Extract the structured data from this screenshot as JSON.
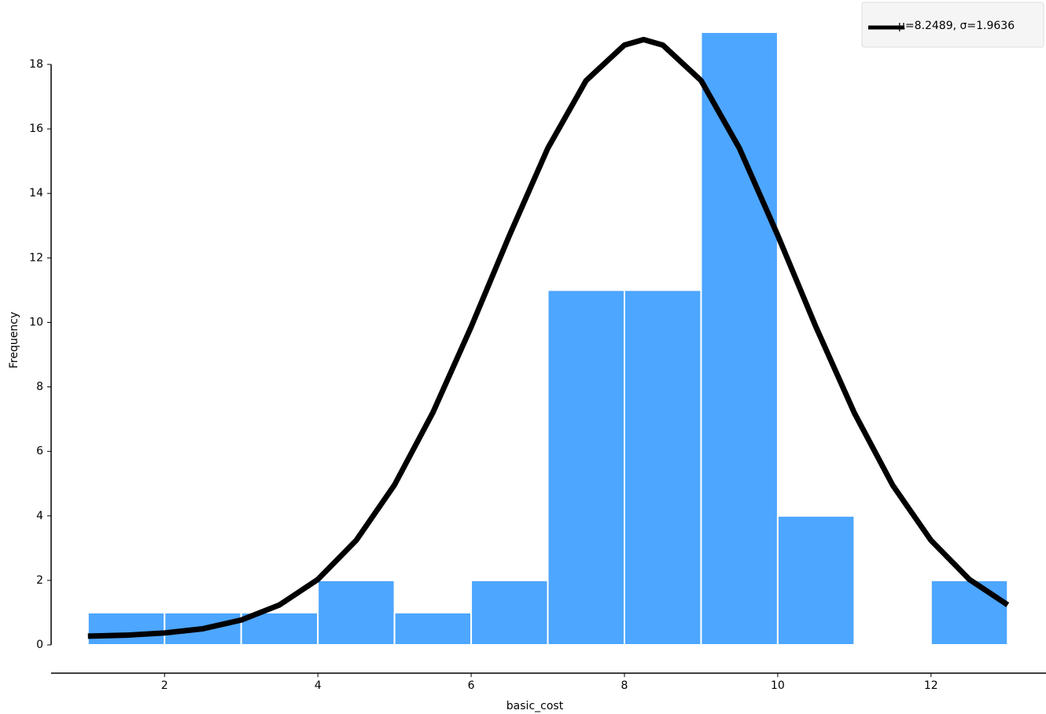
{
  "chart_data": {
    "type": "histogram",
    "xlabel": "basic_cost",
    "ylabel": "Frequency",
    "bins": [
      1,
      2,
      3,
      4,
      5,
      6,
      7,
      8,
      9,
      10,
      11,
      12,
      13
    ],
    "values": [
      1,
      1,
      1,
      2,
      1,
      2,
      11,
      11,
      19,
      4,
      0,
      2
    ],
    "color": "#4da6ff",
    "xlim": [
      0.52,
      13.5
    ],
    "ylim": [
      0,
      18
    ],
    "xticks": [
      2,
      4,
      6,
      8,
      10,
      12
    ],
    "yticks": [
      0,
      2,
      4,
      6,
      8,
      10,
      12,
      14,
      16,
      18
    ],
    "curve": {
      "name": "μ=8.2489, σ=1.9636",
      "color": "#000000",
      "x": [
        1,
        1.5,
        2,
        2.5,
        3,
        3.5,
        4,
        4.5,
        5,
        5.5,
        6,
        6.5,
        7,
        7.5,
        8,
        8.25,
        8.5,
        9,
        9.5,
        10,
        10.5,
        11,
        11.5,
        12,
        12.5,
        13
      ],
      "values": [
        0.27,
        0.3,
        0.37,
        0.5,
        0.77,
        1.24,
        2.03,
        3.24,
        4.96,
        7.2,
        9.86,
        12.7,
        15.4,
        17.5,
        18.6,
        18.77,
        18.6,
        17.5,
        15.4,
        12.7,
        9.85,
        7.19,
        4.95,
        3.24,
        2.03,
        1.24
      ]
    },
    "legend": "upper right"
  }
}
